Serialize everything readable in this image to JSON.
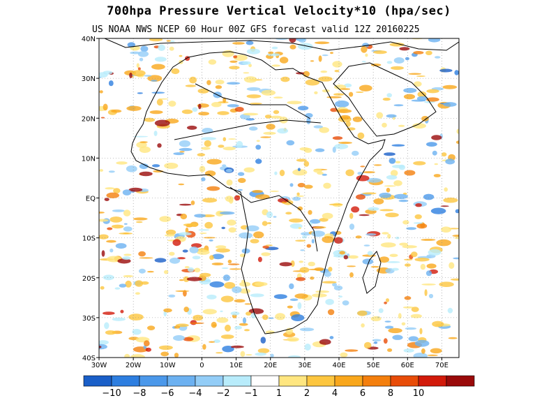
{
  "header": {
    "title": "700hpa Pressure Vertical Velocity*10 (hpa/sec)",
    "subtitle": "US NOAA NWS NCEP 60 Hour 00Z GFS forecast valid 12Z 20160225"
  },
  "map": {
    "lon_range": [
      -30,
      75
    ],
    "lat_range": [
      -40,
      40
    ],
    "lon_ticks": [
      {
        "value": -30,
        "label": "30W"
      },
      {
        "value": -20,
        "label": "20W"
      },
      {
        "value": -10,
        "label": "10W"
      },
      {
        "value": 0,
        "label": "0"
      },
      {
        "value": 10,
        "label": "10E"
      },
      {
        "value": 20,
        "label": "20E"
      },
      {
        "value": 30,
        "label": "30E"
      },
      {
        "value": 40,
        "label": "40E"
      },
      {
        "value": 50,
        "label": "50E"
      },
      {
        "value": 60,
        "label": "60E"
      },
      {
        "value": 70,
        "label": "70E"
      }
    ],
    "lat_ticks": [
      {
        "value": 40,
        "label": "40N"
      },
      {
        "value": 30,
        "label": "30N"
      },
      {
        "value": 20,
        "label": "20N"
      },
      {
        "value": 10,
        "label": "10N"
      },
      {
        "value": 0,
        "label": "EQ"
      },
      {
        "value": -10,
        "label": "10S"
      },
      {
        "value": -20,
        "label": "20S"
      },
      {
        "value": -30,
        "label": "30S"
      },
      {
        "value": -40,
        "label": "40S"
      }
    ],
    "grid": "dotted"
  },
  "colorbar": {
    "colors": [
      "#1a5fc8",
      "#2d7ee0",
      "#4b98ea",
      "#6cb1f1",
      "#93cdf7",
      "#b8ecfb",
      "#ffffff",
      "#ffe680",
      "#fdc63f",
      "#f9a71c",
      "#f47f0d",
      "#e84c08",
      "#d21a0a",
      "#9a0a0a"
    ],
    "labels": [
      "-10",
      "-8",
      "-6",
      "-4",
      "-2",
      "-1",
      "1",
      "2",
      "4",
      "6",
      "8",
      "10"
    ]
  }
}
